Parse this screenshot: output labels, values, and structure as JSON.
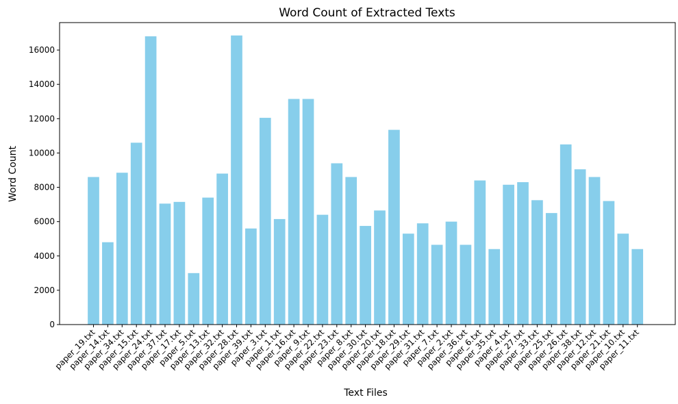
{
  "chart_data": {
    "type": "bar",
    "title": "Word Count of Extracted Texts",
    "xlabel": "Text Files",
    "ylabel": "Word Count",
    "ylim": [
      0,
      17600
    ],
    "yticks": [
      0,
      2000,
      4000,
      6000,
      8000,
      10000,
      12000,
      14000,
      16000
    ],
    "grid": false,
    "bar_color": "#87CEEB",
    "categories": [
      "paper_19.txt",
      "paper_14.txt",
      "paper_34.txt",
      "paper_15.txt",
      "paper_24.txt",
      "paper_37.txt",
      "paper_17.txt",
      "paper_5.txt",
      "paper_13.txt",
      "paper_32.txt",
      "paper_28.txt",
      "paper_39.txt",
      "paper_3.txt",
      "paper_1.txt",
      "paper_16.txt",
      "paper_9.txt",
      "paper_22.txt",
      "paper_23.txt",
      "paper_8.txt",
      "paper_30.txt",
      "paper_20.txt",
      "paper_18.txt",
      "paper_29.txt",
      "paper_31.txt",
      "paper_7.txt",
      "paper_2.txt",
      "paper_36.txt",
      "paper_6.txt",
      "paper_35.txt",
      "paper_4.txt",
      "paper_27.txt",
      "paper_33.txt",
      "paper_25.txt",
      "paper_26.txt",
      "paper_38.txt",
      "paper_12.txt",
      "paper_21.txt",
      "paper_10.txt",
      "paper_11.txt"
    ],
    "values": [
      8600,
      4800,
      8850,
      10600,
      16800,
      7050,
      7150,
      3000,
      7400,
      8800,
      16850,
      5600,
      12050,
      6150,
      13150,
      13150,
      6400,
      9400,
      8600,
      5750,
      6650,
      11350,
      5300,
      5900,
      4650,
      6000,
      4650,
      8400,
      4400,
      8150,
      8300,
      7250,
      6500,
      10500,
      9050,
      8600,
      7200,
      5300,
      4400
    ]
  }
}
